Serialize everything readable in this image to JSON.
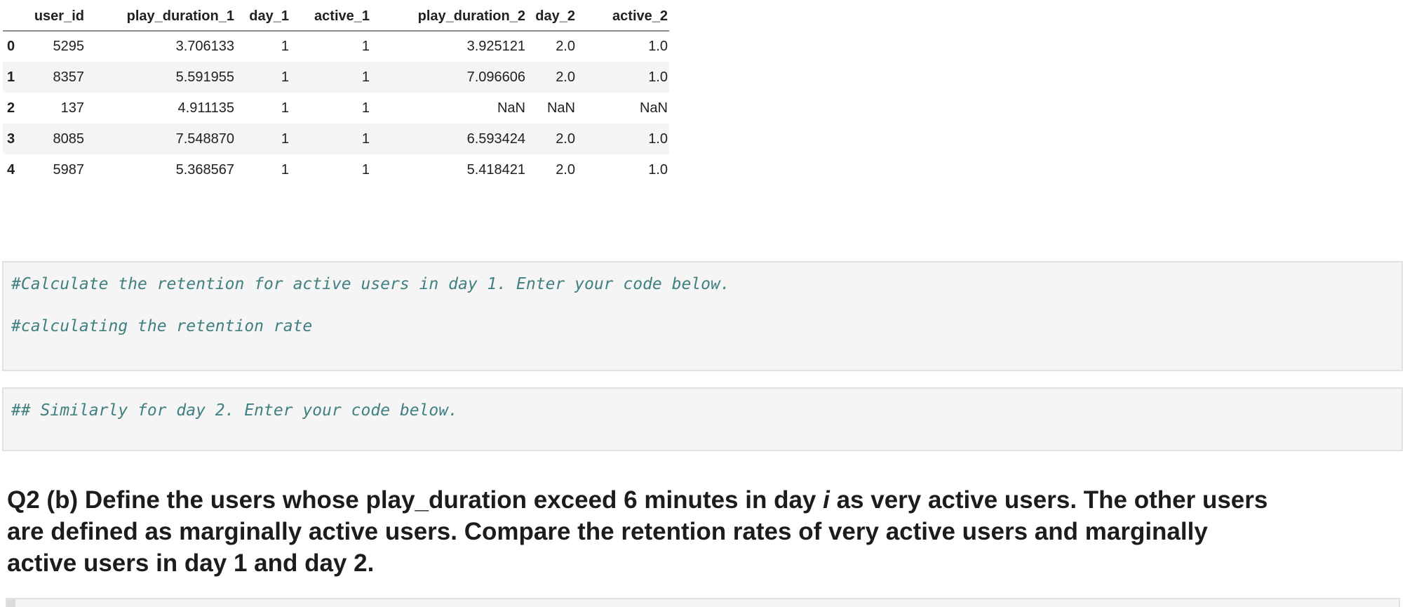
{
  "table": {
    "columns": [
      "",
      "user_id",
      "play_duration_1",
      "day_1",
      "active_1",
      "play_duration_2",
      "day_2",
      "active_2"
    ],
    "rows": [
      {
        "index": "0",
        "cells": [
          "5295",
          "3.706133",
          "1",
          "1",
          "3.925121",
          "2.0",
          "1.0"
        ]
      },
      {
        "index": "1",
        "cells": [
          "8357",
          "5.591955",
          "1",
          "1",
          "7.096606",
          "2.0",
          "1.0"
        ]
      },
      {
        "index": "2",
        "cells": [
          "137",
          "4.911135",
          "1",
          "1",
          "NaN",
          "NaN",
          "NaN"
        ]
      },
      {
        "index": "3",
        "cells": [
          "8085",
          "7.548870",
          "1",
          "1",
          "6.593424",
          "2.0",
          "1.0"
        ]
      },
      {
        "index": "4",
        "cells": [
          "5987",
          "5.368567",
          "1",
          "1",
          "5.418421",
          "2.0",
          "1.0"
        ]
      }
    ]
  },
  "code_cells": [
    {
      "lines": [
        "#Calculate the retention for active users in day 1. Enter your code below.",
        "",
        "#calculating the retention rate"
      ]
    },
    {
      "lines": [
        "## Similarly for day 2. Enter your code below."
      ]
    }
  ],
  "question": {
    "line1_pre": "Q2 (b) Define the users whose play_duration exceed 6 minutes in day ",
    "line1_var": "i",
    "line1_post": " as very active users. The other users",
    "line2": "are defined as marginally active users. Compare the retention rates of very active users and marginally",
    "line3": "active users in day 1 and day 2."
  },
  "colors": {
    "stripe": "#f5f5f5",
    "cell_background": "#f5f5f5",
    "cell_border": "#e1e1e1",
    "comment_text": "#408080",
    "header_rule": "#8c8c8c",
    "body_text": "#212121"
  }
}
